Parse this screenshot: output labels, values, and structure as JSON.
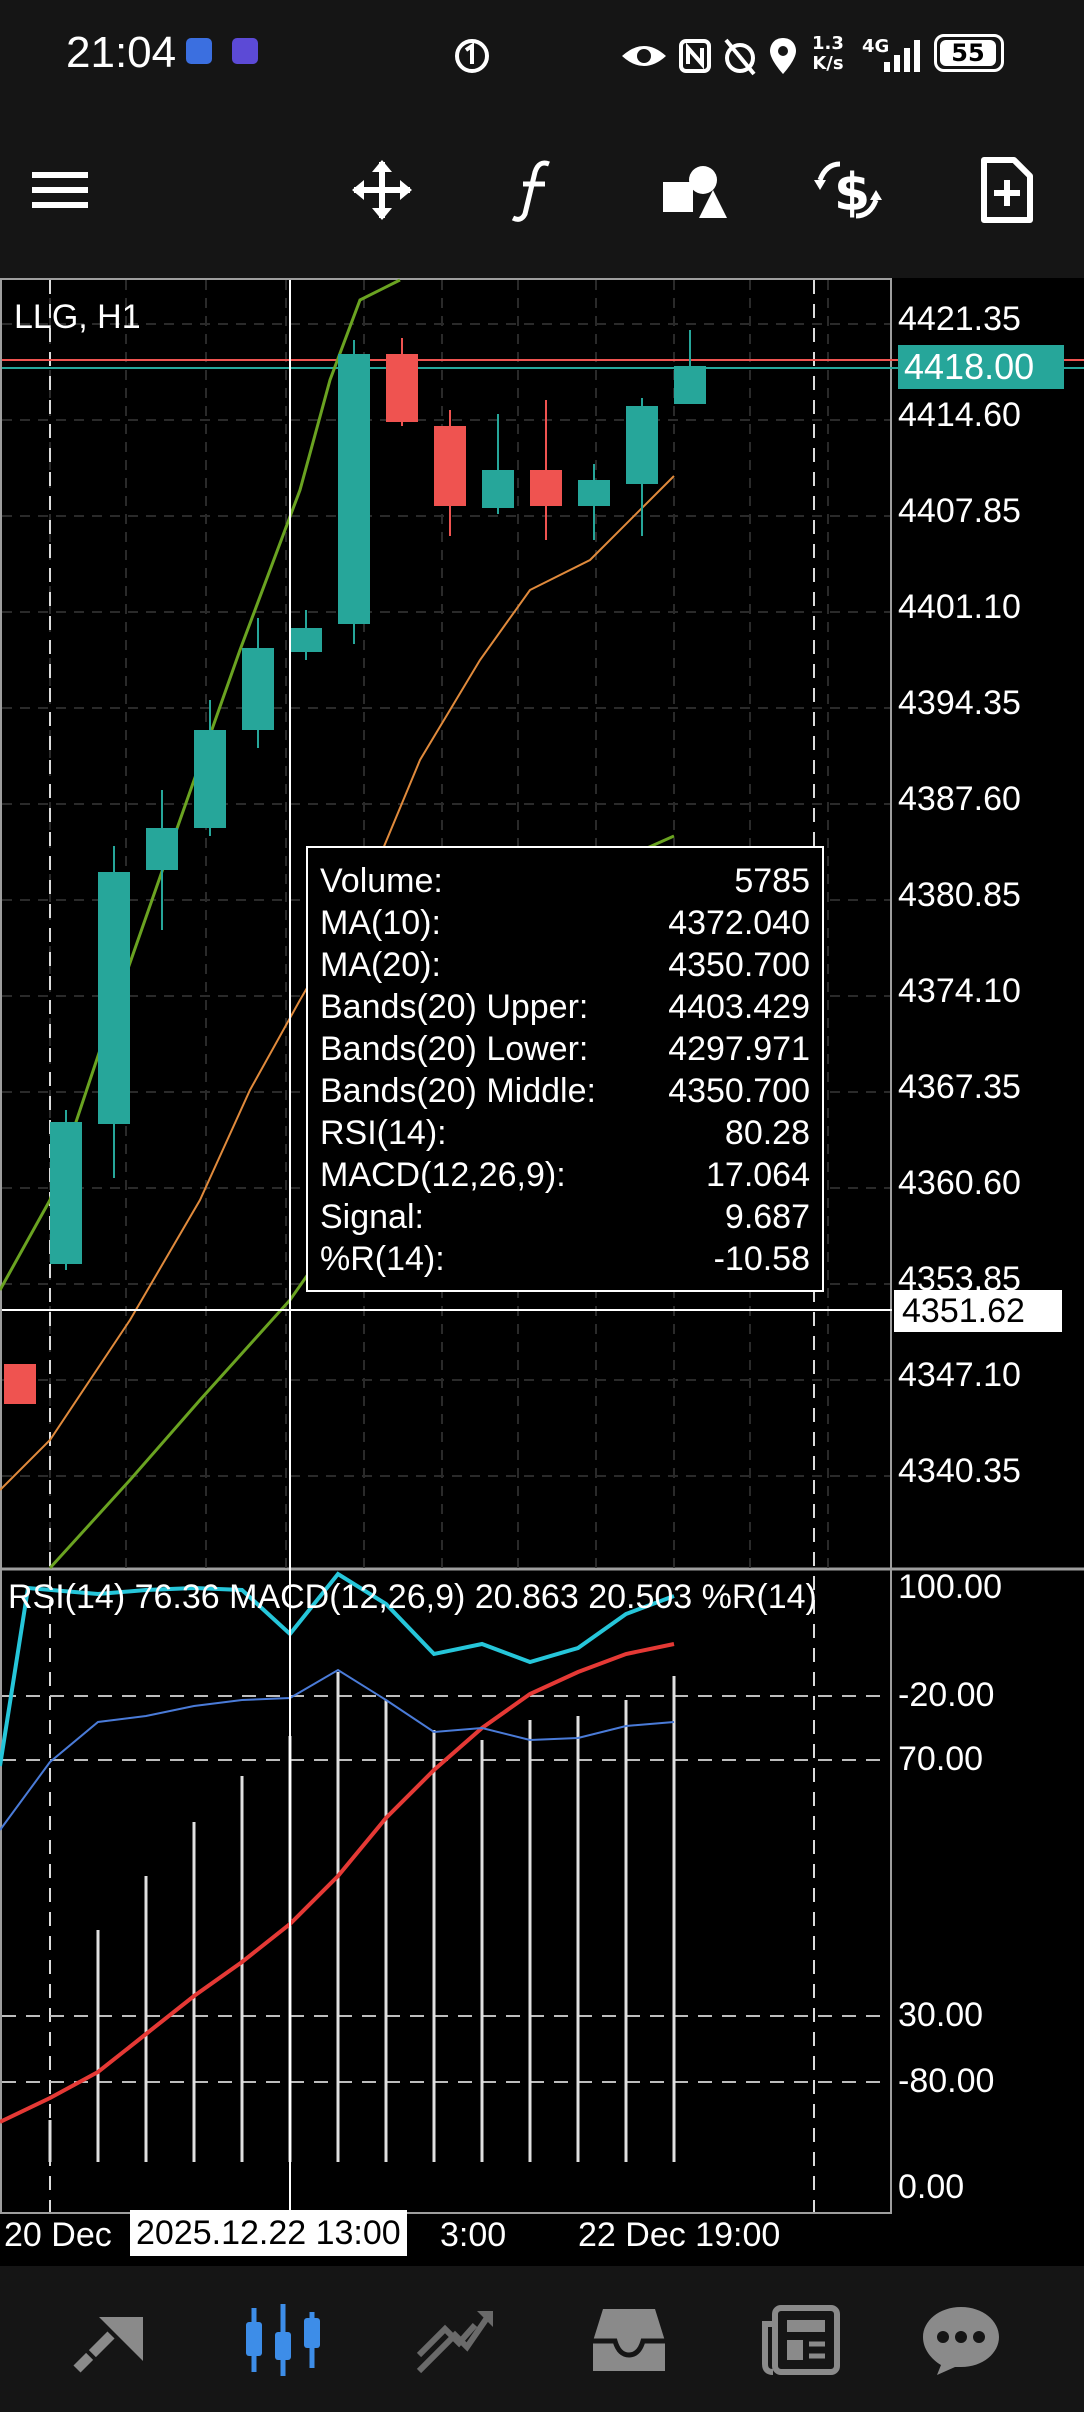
{
  "status_bar": {
    "time": "21:04",
    "net_speed_value": "1.3",
    "net_speed_unit": "K/s",
    "network": "4G",
    "battery": "55"
  },
  "toolbar": {
    "items": [
      {
        "name": "menu-icon"
      },
      {
        "name": "crosshair-move-icon"
      },
      {
        "name": "indicators-f-icon"
      },
      {
        "name": "objects-shapes-icon"
      },
      {
        "name": "trade-dollar-icon"
      },
      {
        "name": "new-document-icon"
      }
    ]
  },
  "chart": {
    "symbol": "LLG, H1",
    "current_price": "4418.00",
    "crosshair_price": "4351.62",
    "price_axis": [
      "4421.35",
      "4414.60",
      "4407.85",
      "4401.10",
      "4394.35",
      "4387.60",
      "4380.85",
      "4374.10",
      "4367.35",
      "4360.60",
      "4353.85",
      "4347.10",
      "4340.35"
    ],
    "osc_axis": [
      "100.00",
      "-20.00",
      "70.00",
      "30.00",
      "-80.00",
      "0.00"
    ],
    "osc_title": "RSI(14) 76.36 MACD(12,26,9) 20.863 20.503 %R(14)",
    "x_left": "20 Dec",
    "x_cross": "2025.12.22 13:00",
    "x_partial": "3:00",
    "x_right": "22 Dec 19:00",
    "colors": {
      "up": "#26a69a",
      "down": "#ef5350",
      "bands": "#6aa321",
      "ma": "#e08a3c",
      "rsi": "#26c6da",
      "macd": "#e53935",
      "wpr": "#4a7bd8"
    }
  },
  "infobox": {
    "rows": [
      {
        "label": "Volume:",
        "value": "5785"
      },
      {
        "label": "MA(10):",
        "value": "4372.040"
      },
      {
        "label": "MA(20):",
        "value": "4350.700"
      },
      {
        "label": "Bands(20) Upper:",
        "value": "4403.429"
      },
      {
        "label": "Bands(20) Lower:",
        "value": "4297.971"
      },
      {
        "label": "Bands(20) Middle:",
        "value": "4350.700"
      },
      {
        "label": "RSI(14):",
        "value": "80.28"
      },
      {
        "label": "MACD(12,26,9):",
        "value": "17.064"
      },
      {
        "label": "Signal:",
        "value": "9.687"
      },
      {
        "label": "%R(14):",
        "value": "-10.58"
      }
    ]
  },
  "bottom_nav": {
    "items": [
      {
        "name": "quotes-icon"
      },
      {
        "name": "chart-candles-icon",
        "active": true
      },
      {
        "name": "trade-icon"
      },
      {
        "name": "history-inbox-icon"
      },
      {
        "name": "news-icon"
      },
      {
        "name": "messages-chat-icon"
      }
    ]
  }
}
